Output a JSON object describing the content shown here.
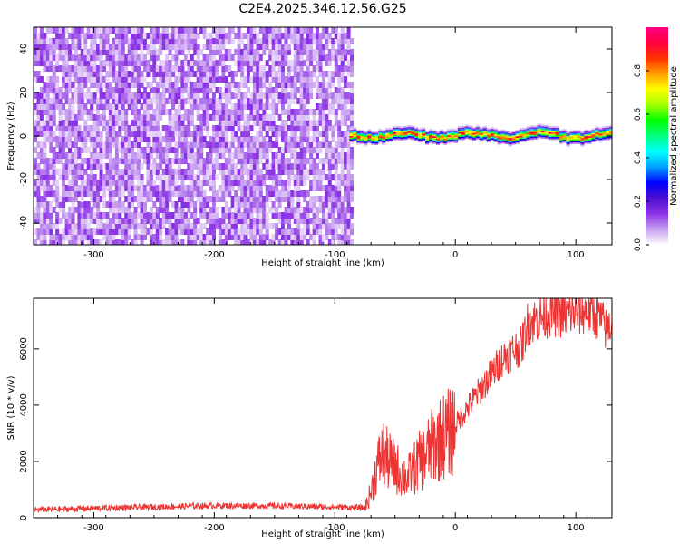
{
  "title": "C2E4.2025.346.12.56.G25",
  "chart_data": [
    {
      "type": "heatmap",
      "xlabel": "Height of straight line (km)",
      "ylabel": "Frequency (Hz)",
      "xlim": [
        -350,
        130
      ],
      "ylim": [
        -50,
        50
      ],
      "xticks": [
        -300,
        -200,
        -100,
        0,
        100
      ],
      "yticks": [
        -40,
        -20,
        0,
        20,
        40
      ],
      "colorbar": {
        "label": "Normalized spectral amplitude",
        "range": [
          0,
          1
        ],
        "ticks": [
          0.0,
          0.2,
          0.4,
          0.6,
          0.8
        ],
        "colormap": [
          "#ffffff",
          "#c8a0f0",
          "#8c32e6",
          "#4b0fcf",
          "#0000ff",
          "#00a0ff",
          "#00ffff",
          "#00ff80",
          "#00ff00",
          "#a0ff00",
          "#ffff00",
          "#ffa000",
          "#ff3000",
          "#ff0040",
          "#ff0080"
        ]
      },
      "regions": [
        {
          "description": "broadband noise",
          "x_range": [
            -350,
            -85
          ],
          "y_range": [
            -50,
            50
          ],
          "amplitude_range": [
            0.0,
            0.15
          ]
        },
        {
          "description": "signal band near 0 Hz",
          "x_range": [
            -88,
            130
          ],
          "center_hz": 0,
          "halfwidth_hz": 4,
          "peak_amplitude": 0.95
        }
      ]
    },
    {
      "type": "line",
      "xlabel": "Height of straight line (km)",
      "ylabel": "SNR (10 * v/v)",
      "xlim": [
        -350,
        130
      ],
      "ylim": [
        0,
        7800
      ],
      "xticks": [
        -300,
        -200,
        -100,
        0,
        100
      ],
      "yticks": [
        0,
        2000,
        4000,
        6000
      ],
      "series_color": "#ee3333",
      "x": [
        -350,
        -300,
        -250,
        -200,
        -150,
        -100,
        -75,
        -70,
        -65,
        -60,
        -55,
        -50,
        -45,
        -40,
        -35,
        -30,
        -25,
        -20,
        -15,
        -10,
        -5,
        0,
        10,
        20,
        30,
        40,
        50,
        55,
        60,
        70,
        80,
        90,
        100,
        110,
        120,
        125,
        130
      ],
      "y": [
        280,
        330,
        380,
        430,
        420,
        380,
        350,
        900,
        1800,
        2300,
        2000,
        1800,
        1600,
        1400,
        1700,
        2000,
        2200,
        2500,
        2700,
        2900,
        3000,
        3300,
        3900,
        4500,
        5100,
        5700,
        6000,
        6100,
        6900,
        7100,
        7300,
        7200,
        7300,
        7350,
        7100,
        6700,
        6900
      ]
    }
  ]
}
